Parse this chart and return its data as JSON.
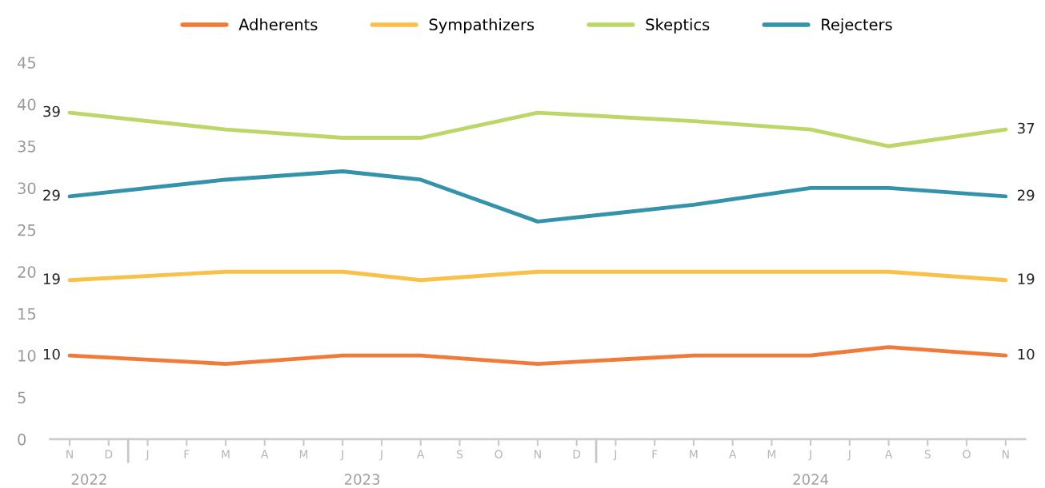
{
  "chart_data": {
    "type": "line",
    "categories": [
      "N",
      "D",
      "J",
      "F",
      "M",
      "A",
      "M",
      "J",
      "J",
      "A",
      "S",
      "O",
      "N",
      "D",
      "J",
      "F",
      "M",
      "A",
      "M",
      "J",
      "J",
      "A",
      "S",
      "O",
      "N"
    ],
    "series": [
      {
        "name": "Adherents",
        "color": "#f07a3a",
        "values": [
          10,
          null,
          null,
          null,
          9,
          null,
          null,
          10,
          null,
          10,
          null,
          null,
          9,
          null,
          null,
          null,
          10,
          null,
          null,
          10,
          null,
          11,
          null,
          null,
          10
        ],
        "value_labels": [
          "10",
          null,
          null,
          null,
          null,
          null,
          null,
          null,
          null,
          null,
          null,
          null,
          null,
          null,
          null,
          null,
          null,
          null,
          null,
          null,
          null,
          null,
          null,
          null,
          "10"
        ]
      },
      {
        "name": "Sympathizers",
        "color": "#f9c04a",
        "values": [
          19,
          null,
          null,
          null,
          20,
          null,
          null,
          20,
          null,
          19,
          null,
          null,
          20,
          null,
          null,
          null,
          20,
          null,
          null,
          20,
          null,
          20,
          null,
          null,
          19
        ],
        "value_labels": [
          "19",
          null,
          null,
          null,
          null,
          null,
          null,
          null,
          null,
          null,
          null,
          null,
          null,
          null,
          null,
          null,
          null,
          null,
          null,
          null,
          null,
          null,
          null,
          null,
          "19"
        ]
      },
      {
        "name": "Skeptics",
        "color": "#bcd66a",
        "values": [
          39,
          null,
          null,
          null,
          37,
          null,
          null,
          36,
          null,
          36,
          null,
          null,
          39,
          null,
          null,
          null,
          38,
          null,
          null,
          37,
          null,
          35,
          null,
          null,
          37
        ],
        "value_labels": [
          "39",
          null,
          null,
          null,
          null,
          null,
          null,
          null,
          null,
          null,
          null,
          null,
          null,
          null,
          null,
          null,
          null,
          null,
          null,
          null,
          null,
          null,
          null,
          null,
          "37"
        ]
      },
      {
        "name": "Rejecters",
        "color": "#3592ab",
        "values": [
          29,
          null,
          null,
          null,
          31,
          null,
          null,
          32,
          null,
          31,
          null,
          null,
          26,
          null,
          null,
          null,
          28,
          null,
          null,
          30,
          null,
          30,
          null,
          null,
          29
        ],
        "value_labels": [
          "29",
          null,
          null,
          null,
          null,
          null,
          null,
          null,
          null,
          null,
          null,
          null,
          null,
          null,
          null,
          null,
          null,
          null,
          null,
          null,
          null,
          null,
          null,
          null,
          "29"
        ]
      }
    ],
    "ylim": [
      0,
      45
    ],
    "yticks": [
      0,
      5,
      10,
      15,
      20,
      25,
      30,
      35,
      40,
      45
    ],
    "annotations": [
      "2022",
      "2023",
      "2024"
    ],
    "grid": false,
    "legend": "top",
    "marker": "none",
    "line_style": "solid"
  }
}
